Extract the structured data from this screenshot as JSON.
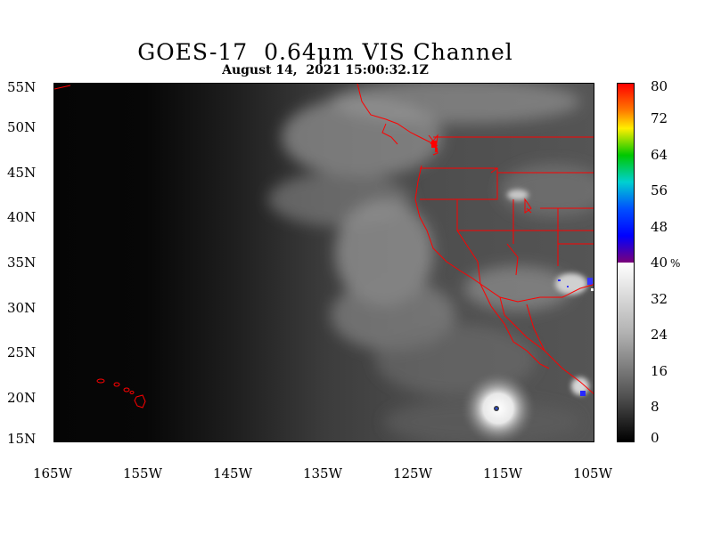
{
  "title": "GOES-17  0.64μm VIS Channel",
  "subtitle": "August 14,  2021 15:00:32.1Z",
  "lat_labels": [
    "55N",
    "50N",
    "45N",
    "40N",
    "35N",
    "30N",
    "25N",
    "20N",
    "15N"
  ],
  "lon_labels": [
    "165W",
    "155W",
    "145W",
    "135W",
    "125W",
    "115W",
    "105W"
  ],
  "colorbar": {
    "labels": [
      "80",
      "72",
      "64",
      "56",
      "48",
      "40",
      "32",
      "24",
      "16",
      "8",
      "0"
    ],
    "unit": "%"
  },
  "colors": {
    "border": "#ff0000",
    "background": "#ffffff"
  }
}
